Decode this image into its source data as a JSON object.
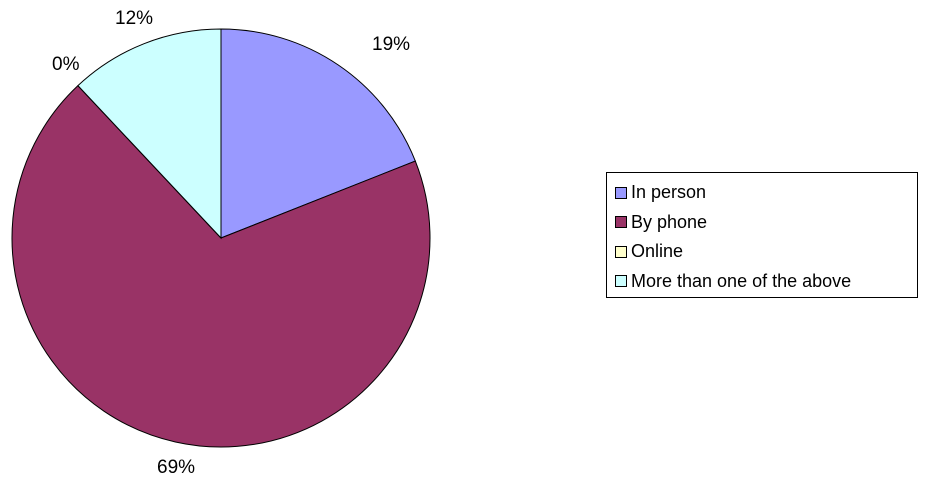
{
  "chart_data": {
    "type": "pie",
    "title": "",
    "categories": [
      "In person",
      "By phone",
      "Online",
      "More than one of the above"
    ],
    "values": [
      19,
      69,
      0,
      12
    ],
    "labels": [
      "19%",
      "69%",
      "0%",
      "12%"
    ],
    "colors": [
      "#9999ff",
      "#993366",
      "#ffffcc",
      "#ccffff"
    ],
    "legend_position": "right",
    "start_angle": "12 o'clock, clockwise"
  }
}
